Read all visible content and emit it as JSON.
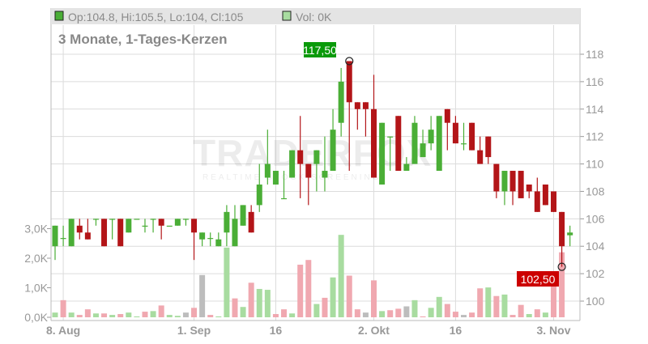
{
  "header": {
    "ohlc_text": "Op:104.8, Hi:105.5, Lo:104, Cl:105",
    "vol_text": "Vol: 0K",
    "subtitle": "3 Monate, 1-Tages-Kerzen"
  },
  "watermark": {
    "brand": "TRADERFOX",
    "tagline": "REALTIME STOCK SCREENING"
  },
  "markers": {
    "high_label": "117,50",
    "low_label": "102,50"
  },
  "colors": {
    "up": "#4aae36",
    "down": "#b31518",
    "vol_up": "#a8dca0",
    "vol_down": "#f0a8b0",
    "vol_flat": "#bdbdbd",
    "high_label_bg": "#0a9a0a",
    "low_label_bg": "#cc0000"
  },
  "chart_data": {
    "type": "candlestick",
    "price_axis": {
      "position": "right",
      "ylim": [
        100,
        118
      ],
      "ticks": [
        "100",
        "102",
        "104",
        "106",
        "108",
        "110",
        "112",
        "114",
        "116",
        "118"
      ]
    },
    "volume_axis": {
      "position": "left",
      "unit": "K",
      "ylim": [
        0,
        3
      ],
      "ticks": [
        "0,0K",
        "1,0K",
        "2,0K",
        "3,0K"
      ]
    },
    "x_ticks": [
      {
        "index": 1,
        "label": "8. Aug"
      },
      {
        "index": 17,
        "label": "1. Sep"
      },
      {
        "index": 27,
        "label": "16"
      },
      {
        "index": 39,
        "label": "2. Okt"
      },
      {
        "index": 49,
        "label": "16"
      },
      {
        "index": 61,
        "label": "3. Nov"
      }
    ],
    "grid": true,
    "ohlc": [
      [
        104,
        105.5,
        103,
        105.5
      ],
      [
        104.6,
        105.5,
        104,
        104.6
      ],
      [
        104,
        106,
        104,
        106
      ],
      [
        105.5,
        106,
        104.5,
        105
      ],
      [
        105,
        106,
        104.5,
        104.5
      ],
      [
        106,
        106,
        105.5,
        106
      ],
      [
        106,
        106,
        104,
        104
      ],
      [
        106,
        106,
        104.5,
        106
      ],
      [
        106,
        106,
        104,
        104
      ],
      [
        105,
        106,
        105,
        106
      ],
      [
        106,
        106,
        106,
        106
      ],
      [
        105.5,
        106,
        105,
        105.5
      ],
      [
        106,
        106,
        105,
        106
      ],
      [
        106,
        106,
        104.5,
        105.5
      ],
      [
        105.5,
        105.5,
        105.5,
        105.5
      ],
      [
        105.5,
        106,
        105.5,
        106
      ],
      [
        106,
        106,
        105.5,
        106
      ],
      [
        106,
        106,
        103,
        105
      ],
      [
        104.5,
        105,
        104,
        105
      ],
      [
        104.6,
        105,
        104,
        104.6
      ],
      [
        104,
        105,
        104,
        104.5
      ],
      [
        105,
        107,
        104,
        106.5
      ],
      [
        104,
        107,
        104,
        106
      ],
      [
        105.5,
        107,
        105.5,
        107
      ],
      [
        106.5,
        107,
        105,
        105
      ],
      [
        107,
        110,
        106.5,
        108.5
      ],
      [
        109,
        112.5,
        108.5,
        110
      ],
      [
        108.5,
        109.5,
        108.5,
        109.5
      ],
      [
        107.5,
        109.5,
        107.5,
        107.5
      ],
      [
        109,
        111,
        109,
        111
      ],
      [
        111,
        113.5,
        107.5,
        110
      ],
      [
        110,
        110,
        107,
        109
      ],
      [
        110,
        111,
        108,
        111
      ],
      [
        109,
        112,
        108,
        109.5
      ],
      [
        109.5,
        114,
        109.5,
        112.5
      ],
      [
        113,
        117,
        112,
        116
      ],
      [
        117.5,
        117.5,
        109.5,
        114.5
      ],
      [
        114.5,
        114.5,
        112.5,
        114
      ],
      [
        114.5,
        114.5,
        112,
        114
      ],
      [
        114,
        116.5,
        109,
        109
      ],
      [
        108.5,
        113,
        108.5,
        113
      ],
      [
        112,
        112,
        109.5,
        112
      ],
      [
        113.5,
        113.5,
        109.5,
        109.5
      ],
      [
        109.5,
        110.5,
        109.5,
        110
      ],
      [
        110,
        113.5,
        110,
        113
      ],
      [
        110.5,
        112.5,
        110.5,
        111.5
      ],
      [
        111.5,
        113.5,
        111,
        112.5
      ],
      [
        109.5,
        113.5,
        109.5,
        113.5
      ],
      [
        114,
        114,
        111,
        113
      ],
      [
        113,
        113.5,
        111.5,
        111.5
      ],
      [
        111.5,
        113,
        111,
        111.5
      ],
      [
        113,
        113,
        111,
        111
      ],
      [
        111,
        112,
        110,
        110
      ],
      [
        112,
        112,
        110,
        110.5
      ],
      [
        110,
        110,
        107.5,
        108
      ],
      [
        108,
        109.5,
        107,
        109.5
      ],
      [
        109.5,
        109.5,
        107,
        108
      ],
      [
        109.5,
        109.5,
        107.5,
        107.5
      ],
      [
        108.5,
        108.5,
        107.5,
        108
      ],
      [
        108,
        109,
        106.5,
        106.5
      ],
      [
        108.5,
        108.5,
        107,
        107
      ],
      [
        108,
        108,
        106.5,
        106.5
      ],
      [
        106.5,
        106.5,
        102.5,
        104
      ],
      [
        104.8,
        105.5,
        104,
        105
      ]
    ],
    "volume": [
      0.16,
      0.58,
      0.16,
      0.08,
      0.27,
      0.13,
      0.13,
      0.08,
      0.11,
      0.16,
      0.03,
      0.19,
      0.21,
      0.4,
      0.08,
      0.05,
      0.16,
      0.32,
      1.43,
      0.08,
      0.03,
      2.36,
      0.64,
      0.35,
      1.17,
      0.96,
      0.93,
      0.11,
      0.27,
      0.13,
      1.78,
      1.94,
      0.45,
      0.66,
      1.35,
      2.79,
      1.41,
      0.27,
      0.16,
      1.25,
      0.21,
      0.24,
      0.29,
      0.37,
      0.58,
      0.03,
      0.32,
      0.69,
      0.45,
      0.19,
      0.08,
      0.16,
      0.98,
      1.01,
      0.72,
      0.77,
      0.08,
      0.42,
      0.11,
      0.27,
      0.16,
      1.3,
      2.2,
      0
    ],
    "volume_direction": [
      "up",
      "down",
      "up",
      "down",
      "down",
      "up",
      "down",
      "up",
      "down",
      "up",
      "up",
      "down",
      "up",
      "down",
      "up",
      "up",
      "flat",
      "down",
      "flat",
      "down",
      "up",
      "up",
      "down",
      "up",
      "down",
      "up",
      "up",
      "down",
      "down",
      "up",
      "down",
      "down",
      "up",
      "down",
      "up",
      "up",
      "down",
      "down",
      "flat",
      "down",
      "up",
      "down",
      "down",
      "flat",
      "up",
      "down",
      "up",
      "up",
      "down",
      "down",
      "flat",
      "down",
      "down",
      "up",
      "down",
      "up",
      "down",
      "down",
      "up",
      "down",
      "up",
      "down",
      "down",
      "up"
    ],
    "high_marker": {
      "index": 36,
      "value": 117.5
    },
    "low_marker": {
      "index": 62,
      "value": 102.5
    }
  }
}
